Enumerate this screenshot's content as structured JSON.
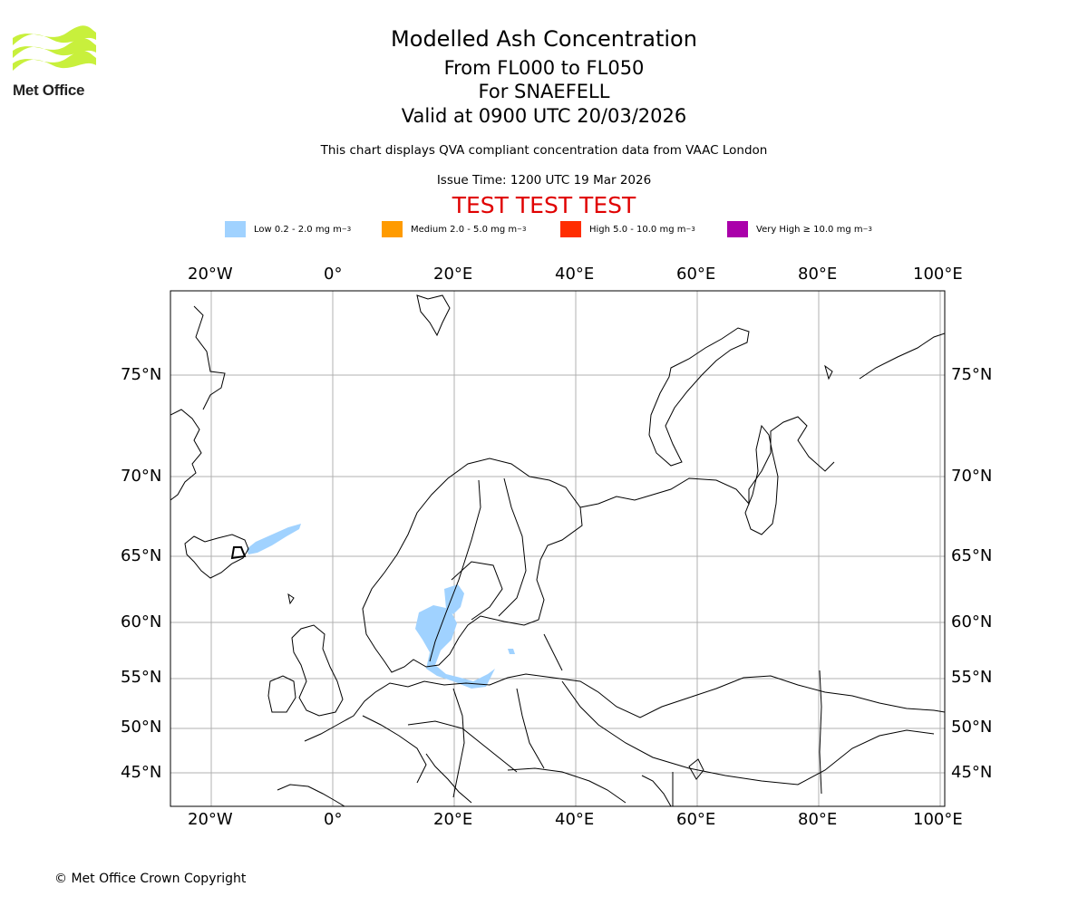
{
  "logo": {
    "text": "Met Office",
    "color": "#c8f03c"
  },
  "title": {
    "line1": "Modelled Ash Concentration",
    "line2": "From FL000 to FL050",
    "line3": "For SNAEFELL",
    "line4": "Valid at 0900 UTC 20/03/2026"
  },
  "subtitle": {
    "qva": "This chart displays QVA compliant concentration data from VAAC London",
    "issue": "Issue Time: 1200 UTC 19 Mar 2026"
  },
  "banner": "TEST TEST TEST",
  "legend": [
    {
      "label": "Low 0.2 - 2.0 mg m",
      "sup": "−3",
      "color": "#a0d2ff"
    },
    {
      "label": "Medium 2.0 - 5.0 mg m",
      "sup": "−3",
      "color": "#ff9b00"
    },
    {
      "label": "High 5.0 - 10.0 mg m",
      "sup": "−3",
      "color": "#ff2d00"
    },
    {
      "label": "Very High  ≥  10.0 mg m",
      "sup": "−3",
      "color": "#aa00aa"
    }
  ],
  "axes": {
    "lon_labels": [
      "20°W",
      "0°",
      "20°E",
      "40°E",
      "60°E",
      "80°E",
      "100°E"
    ],
    "lat_labels": [
      "75°N",
      "70°N",
      "65°N",
      "60°N",
      "55°N",
      "50°N",
      "45°N"
    ]
  },
  "copyright": "© Met Office Crown Copyright"
}
